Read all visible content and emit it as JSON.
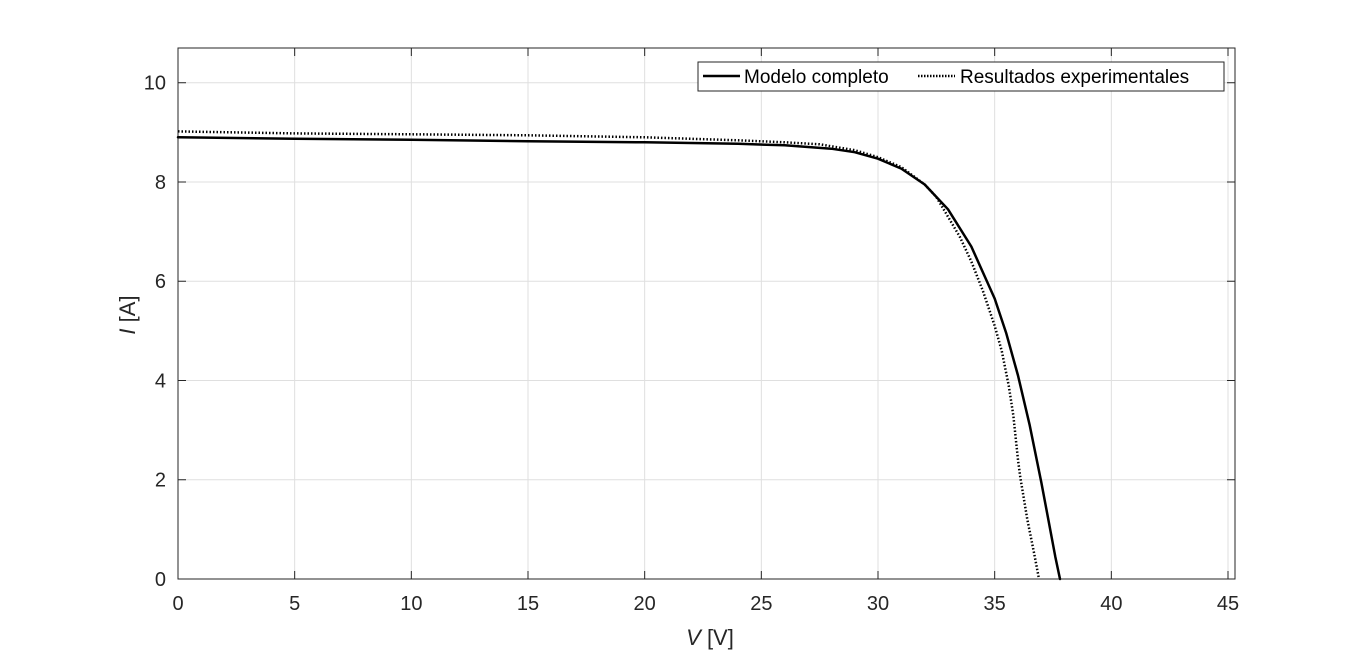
{
  "chart_data": {
    "type": "line",
    "xlabel_var": "V",
    "xlabel_unit": " [V]",
    "ylabel_var": "I",
    "ylabel_unit": " [A]",
    "xlim": [
      0,
      45.3
    ],
    "ylim": [
      0,
      10.7
    ],
    "xticks": [
      0,
      5,
      10,
      15,
      20,
      25,
      30,
      35,
      40,
      45
    ],
    "yticks": [
      0,
      2,
      4,
      6,
      8,
      10
    ],
    "grid": true,
    "legend_position": "top-right",
    "series": [
      {
        "name": "Modelo completo",
        "style": "solid",
        "color": "#000000",
        "x": [
          0,
          5,
          10,
          15,
          20,
          24,
          26,
          28,
          29,
          30,
          31,
          32,
          33,
          34,
          35,
          35.5,
          36,
          36.5,
          37,
          37.3,
          37.6,
          37.8
        ],
        "y": [
          8.9,
          8.87,
          8.85,
          8.82,
          8.8,
          8.77,
          8.74,
          8.67,
          8.6,
          8.47,
          8.27,
          7.95,
          7.45,
          6.7,
          5.65,
          4.95,
          4.1,
          3.1,
          1.95,
          1.2,
          0.45,
          0.0
        ]
      },
      {
        "name": "Resultados experimentales",
        "style": "dotted",
        "color": "#000000",
        "x": [
          0,
          5,
          10,
          15,
          20,
          24,
          26,
          27.5,
          29,
          30,
          31,
          32,
          32.5,
          33,
          33.5,
          34,
          34.5,
          35,
          35.3,
          35.6,
          35.8,
          36.0,
          36.1,
          36.4,
          36.7,
          36.9
        ],
        "y": [
          9.02,
          8.98,
          8.96,
          8.94,
          8.9,
          8.84,
          8.8,
          8.76,
          8.64,
          8.5,
          8.3,
          7.95,
          7.7,
          7.3,
          6.9,
          6.4,
          5.8,
          5.1,
          4.6,
          3.9,
          3.3,
          2.4,
          2.05,
          1.2,
          0.5,
          0.0
        ]
      }
    ]
  }
}
